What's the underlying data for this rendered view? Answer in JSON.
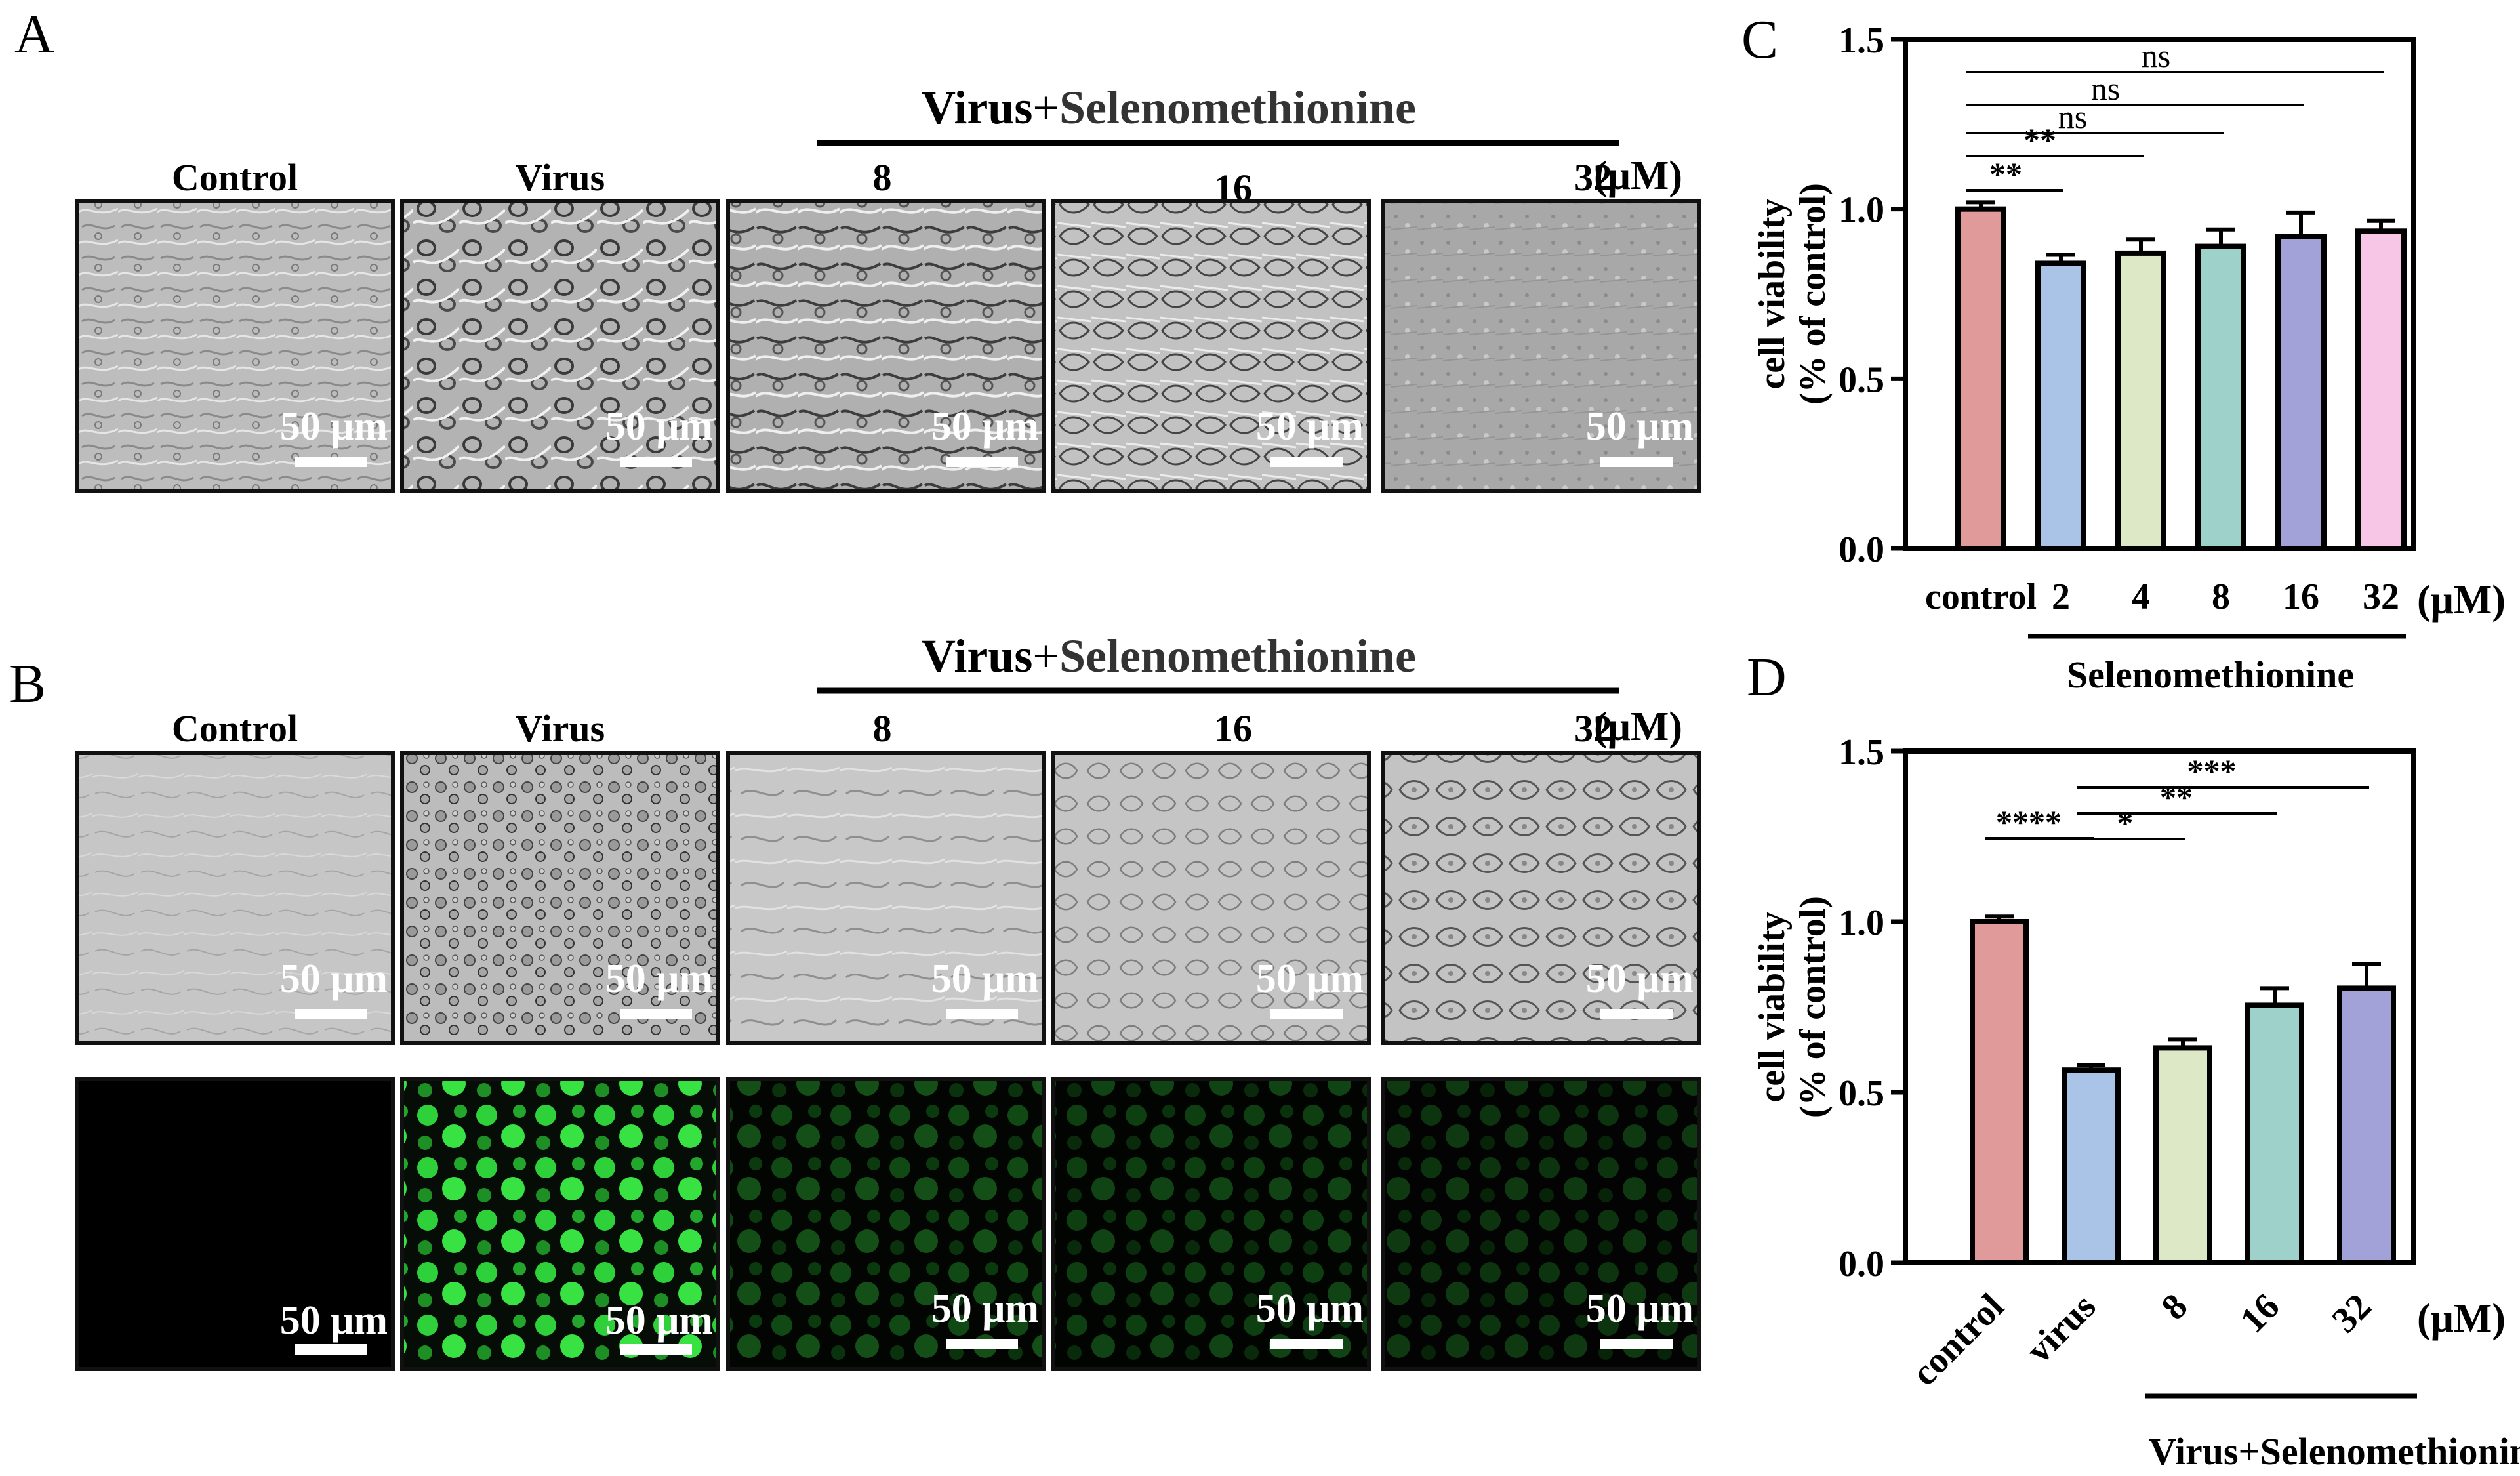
{
  "panels": {
    "A": {
      "letter": "A",
      "group_label_bold": "Virus",
      "group_label_plus": "+",
      "group_label_drug": "Selenomethionine",
      "columns": [
        "Control",
        "Virus",
        "8",
        "16",
        "32"
      ],
      "unit": "(μM)",
      "scale_bar": "50 μm"
    },
    "B": {
      "letter": "B",
      "group_label_bold": "Virus",
      "group_label_plus": "+",
      "group_label_drug": "Selenomethionine",
      "columns": [
        "Control",
        "Virus",
        "8",
        "16",
        "32"
      ],
      "unit": "(μM)",
      "scale_bar": "50 μm"
    }
  },
  "image_tiles": {
    "A_brightfield": [
      "brightfield-control",
      "brightfield-virus",
      "brightfield-8",
      "brightfield-16",
      "brightfield-32"
    ],
    "B_brightfield": [
      "brightfield-control",
      "brightfield-virus",
      "brightfield-8",
      "brightfield-16",
      "brightfield-32"
    ],
    "B_fluorescence_intensity": [
      0.0,
      1.0,
      0.35,
      0.3,
      0.25
    ]
  },
  "chart_data": [
    {
      "panel": "C",
      "type": "bar",
      "categories": [
        "control",
        "2",
        "4",
        "8",
        "16",
        "32"
      ],
      "values": [
        1.0,
        0.84,
        0.87,
        0.89,
        0.92,
        0.935
      ],
      "errors": [
        0.02,
        0.025,
        0.04,
        0.05,
        0.07,
        0.03
      ],
      "colors": [
        "#e19a9a",
        "#a9c4e6",
        "#dde9c6",
        "#9fd1cb",
        "#a3a2d8",
        "#f7c6e6"
      ],
      "ylabel_line1": "cell viability",
      "ylabel_line2": "(% of control)",
      "ylim": [
        0,
        1.5
      ],
      "yticks": [
        "0.0",
        "0.5",
        "1.0",
        "1.5"
      ],
      "unit": "(μM)",
      "group_label": "Selenomethionine",
      "significance": [
        {
          "from": 0,
          "to": 1,
          "label": "**"
        },
        {
          "from": 0,
          "to": 2,
          "label": "**"
        },
        {
          "from": 0,
          "to": 3,
          "label": "ns"
        },
        {
          "from": 0,
          "to": 4,
          "label": "ns"
        },
        {
          "from": 0,
          "to": 5,
          "label": "ns"
        }
      ]
    },
    {
      "panel": "D",
      "type": "bar",
      "categories": [
        "control",
        "virus",
        "8",
        "16",
        "32"
      ],
      "values": [
        1.0,
        0.565,
        0.63,
        0.755,
        0.805
      ],
      "errors": [
        0.015,
        0.015,
        0.025,
        0.05,
        0.07
      ],
      "colors": [
        "#e19a9a",
        "#a9c4e6",
        "#dde9c6",
        "#9fd1cb",
        "#a3a2d8"
      ],
      "ylabel_line1": "cell viability",
      "ylabel_line2": "(% of control)",
      "ylim": [
        0,
        1.5
      ],
      "yticks": [
        "0.0",
        "0.5",
        "1.0",
        "1.5"
      ],
      "unit": "(μM)",
      "group_label": "Virus+Selenomethionine",
      "significance": [
        {
          "from": 0,
          "to": 1,
          "label": "****"
        },
        {
          "from": 1,
          "to": 2,
          "label": "*"
        },
        {
          "from": 1,
          "to": 3,
          "label": "**"
        },
        {
          "from": 1,
          "to": 4,
          "label": "***"
        }
      ]
    }
  ],
  "chart_letters": {
    "C": "C",
    "D": "D"
  }
}
